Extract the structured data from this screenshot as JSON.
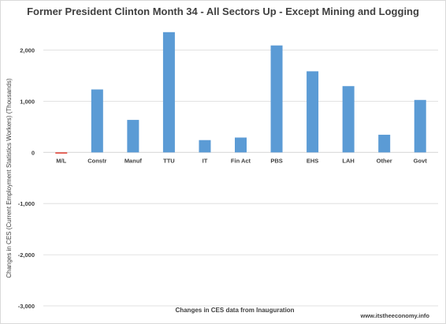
{
  "chart_data": {
    "type": "bar",
    "title": "Former President Clinton Month 34 - All Sectors Up - Except Mining and Logging",
    "xlabel": "Changes in CES data from Inauguration",
    "ylabel": "Changes in CES (Current Employment Statistics Workers) (Thousands)",
    "source": "www.itstheeconomy.info",
    "categories": [
      "M/L",
      "Constr",
      "Manuf",
      "TTU",
      "IT",
      "Fin Act",
      "PBS",
      "EHS",
      "LAH",
      "Other",
      "Govt"
    ],
    "values": [
      -15,
      1230,
      635,
      2350,
      240,
      290,
      2090,
      1585,
      1295,
      345,
      1025
    ],
    "ylim": [
      -3000,
      2500
    ],
    "yticks": [
      2000,
      1000,
      0,
      -1000,
      -2000,
      -3000
    ],
    "ytick_labels": [
      "2,000",
      "1,000",
      "0",
      "-1,000",
      "-2,000",
      "-3,000"
    ],
    "grid": true,
    "colors": {
      "positive": "#5b9bd5",
      "negative": "#e03b2e",
      "grid": "#d9d9d9",
      "text": "#404040"
    }
  }
}
